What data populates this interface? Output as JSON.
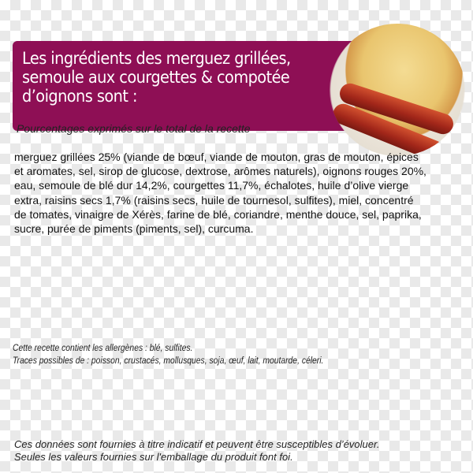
{
  "header": {
    "title": "Les ingrédients des merguez grillées, semoule aux courgettes & compotée d’oignons sont :",
    "accent_color": "#8e0f55",
    "image": "merguez-semoule-dish-photo"
  },
  "subtitle": "Pourcentages exprimés sur le total de la recette",
  "ingredients": "merguez grillées 25% (viande de bœuf, viande de mouton, gras de mouton, épices et aromates, sel, sirop de glucose, dextrose, arômes naturels), oignons rouges 20%, eau, semoule de blé dur 14,2%, courgettes 11,7%, échalotes, huile d’olive vierge extra, raisins secs 1,7% (raisins secs, huile de tournesol, sulfites), miel, concentré de tomates, vinaigre de Xérès, farine de blé, coriandre, menthe douce, sel, paprika, sucre, purée de piments (piments, sel), curcuma.",
  "allergens": {
    "contains": "Cette recette contient les allergènes : blé, sulfites.",
    "traces": "Traces possibles de : poisson, crustacés, mollusques, soja, œuf, lait, moutarde, céleri."
  },
  "disclaimer": {
    "line1": "Ces données sont fournies à titre indicatif et peuvent être susceptibles d’évoluer.",
    "line2": "Seules les valeurs fournies sur l'emballage du produit font foi."
  }
}
